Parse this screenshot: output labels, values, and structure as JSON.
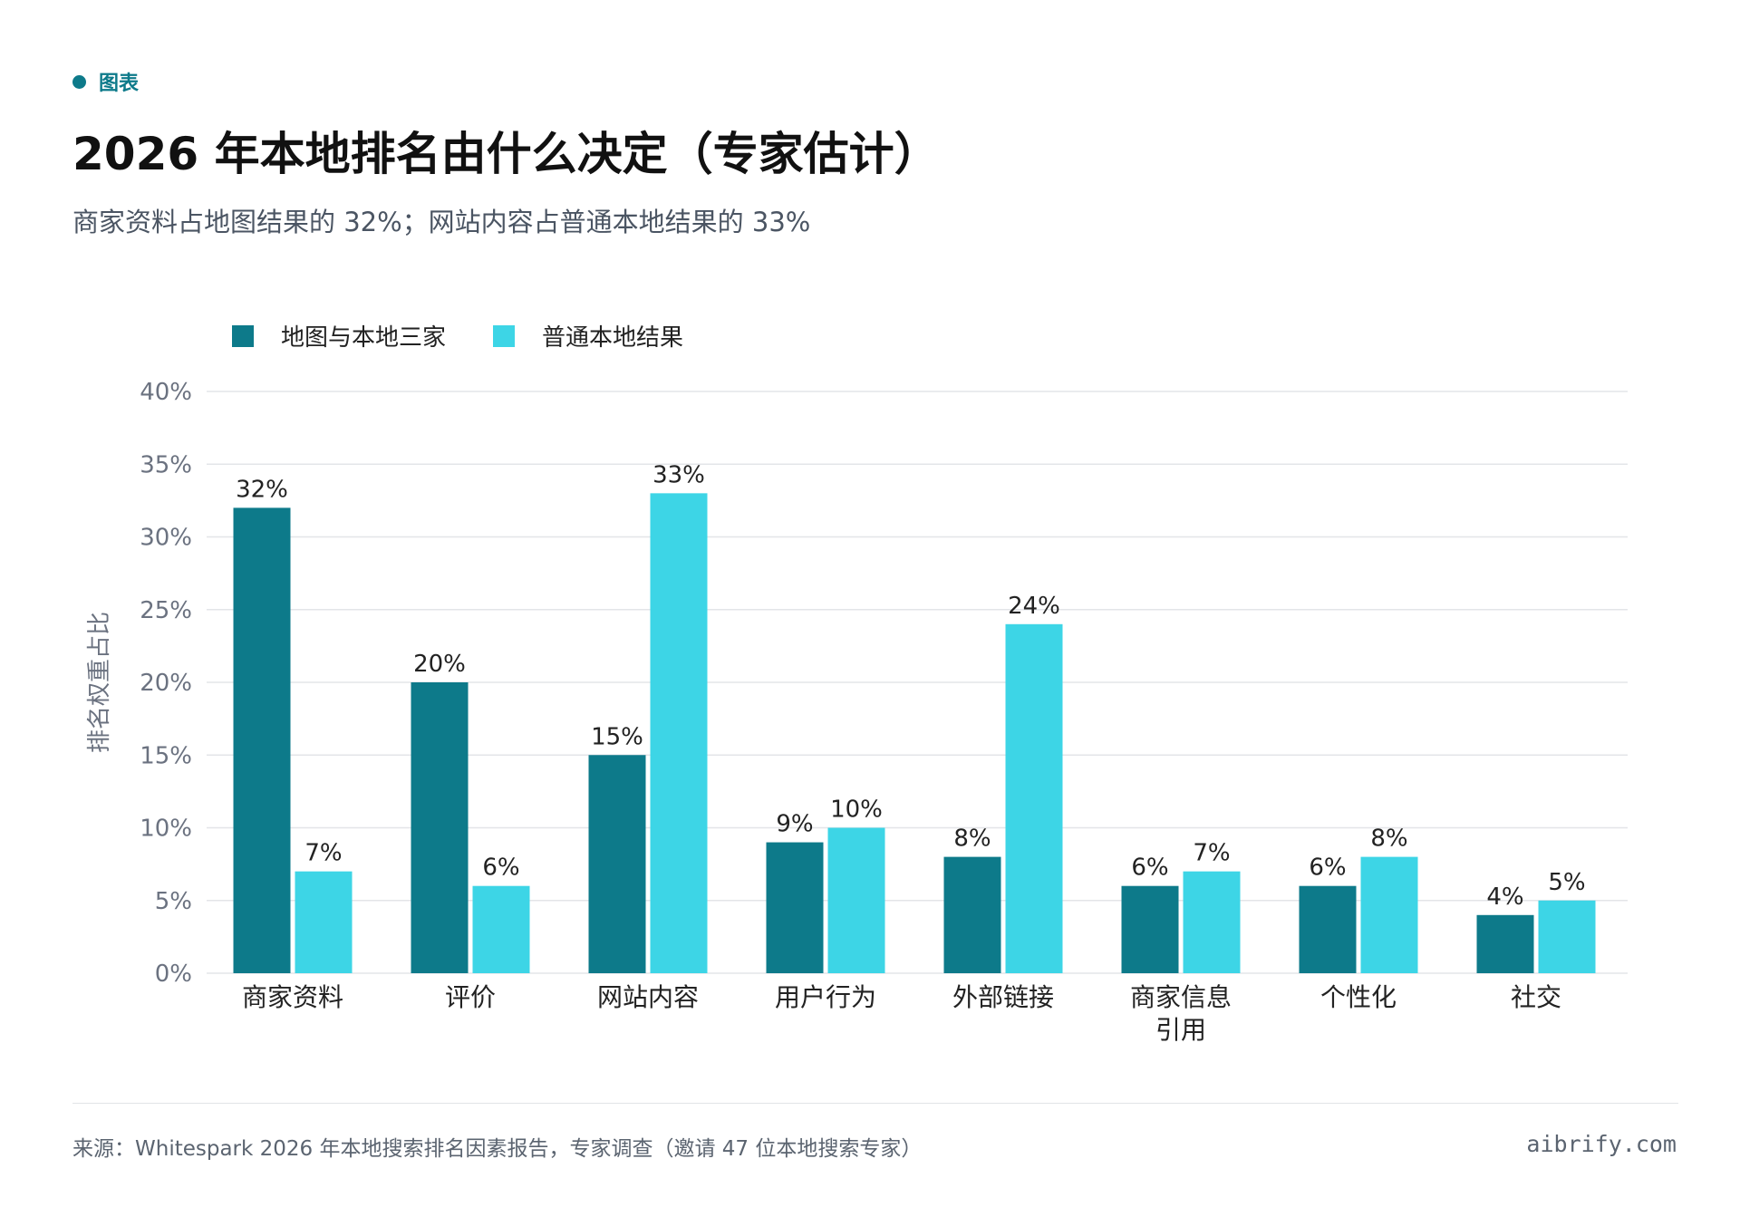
{
  "header": {
    "tag": "图表",
    "title": "2026 年本地排名由什么决定（专家估计）",
    "subtitle": "商家资料占地图结果的 32%；网站内容占普通本地结果的 33%"
  },
  "colors": {
    "accent": "#0d7a8a",
    "series1": "#0d7a8a",
    "series2": "#3dd5e6"
  },
  "chart_data": {
    "type": "bar",
    "categories": [
      "商家资料",
      "评价",
      "网站内容",
      "用户行为",
      "外部链接",
      "商家信息\n引用",
      "个性化",
      "社交"
    ],
    "series": [
      {
        "name": "地图与本地三家",
        "values": [
          32,
          20,
          15,
          9,
          8,
          6,
          6,
          4
        ]
      },
      {
        "name": "普通本地结果",
        "values": [
          7,
          6,
          33,
          10,
          24,
          7,
          8,
          5
        ]
      }
    ],
    "ylabel": "排名权重占比",
    "ylim": [
      0,
      40
    ],
    "yticks": [
      0,
      5,
      10,
      15,
      20,
      25,
      30,
      35,
      40
    ],
    "value_suffix": "%",
    "grid": true,
    "legend_position": "top-left"
  },
  "footer": {
    "source": "来源：Whitespark 2026 年本地搜索排名因素报告，专家调查（邀请 47 位本地搜索专家）",
    "brand": "aibrify.com"
  }
}
